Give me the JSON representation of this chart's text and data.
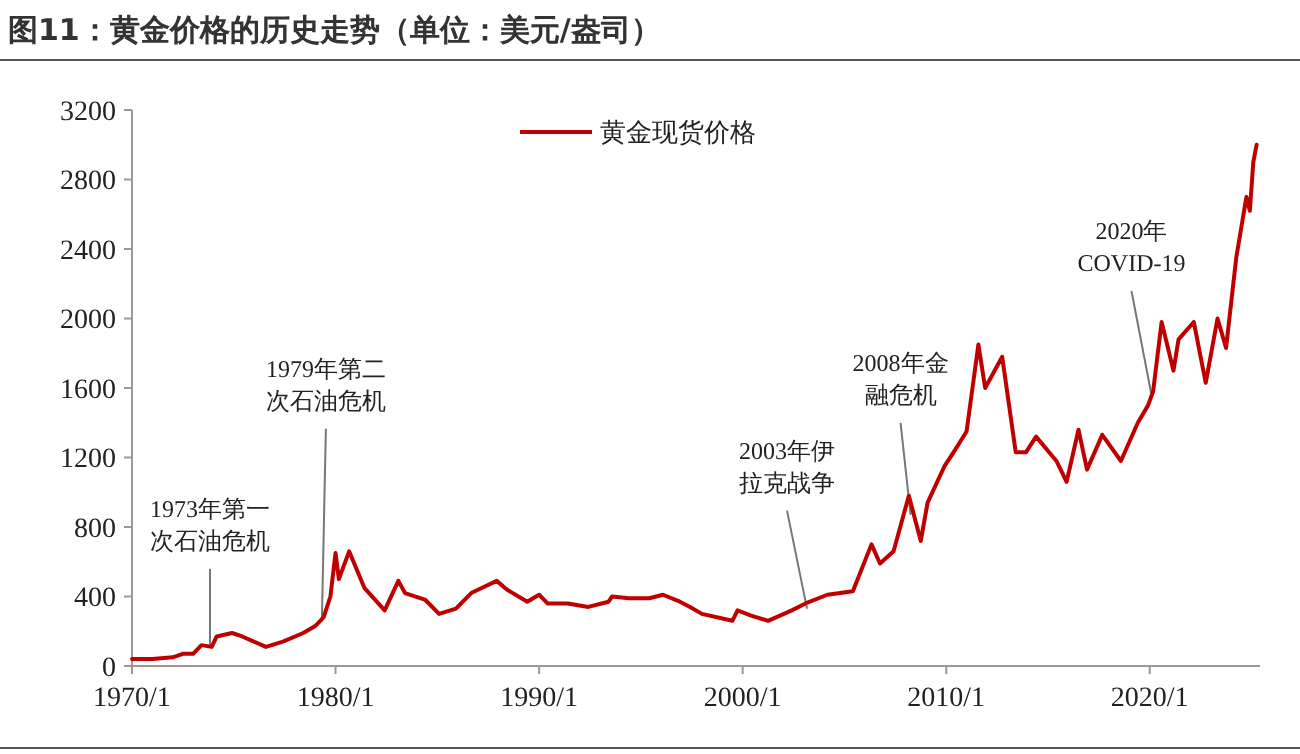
{
  "chart_data": {
    "type": "line",
    "title": "图11：黄金价格的历史走势（单位：美元/盎司）",
    "x": [
      "1970-01",
      "1971-01",
      "1972-01",
      "1972-07",
      "1973-01",
      "1973-06",
      "1973-12",
      "1974-03",
      "1974-12",
      "1975-06",
      "1976-08",
      "1977-06",
      "1978-06",
      "1979-01",
      "1979-06",
      "1979-10",
      "1980-01",
      "1980-03",
      "1980-09",
      "1981-06",
      "1982-06",
      "1983-02",
      "1983-06",
      "1984-06",
      "1985-02",
      "1985-12",
      "1986-09",
      "1987-12",
      "1988-06",
      "1989-06",
      "1990-01",
      "1990-06",
      "1991-06",
      "1992-06",
      "1993-06",
      "1993-08",
      "1994-06",
      "1995-06",
      "1996-02",
      "1996-12",
      "1997-06",
      "1998-01",
      "1999-07",
      "1999-10",
      "2000-06",
      "2001-04",
      "2002-06",
      "2003-02",
      "2004-03",
      "2005-06",
      "2006-05",
      "2006-10",
      "2007-06",
      "2008-03",
      "2008-10",
      "2009-02",
      "2009-12",
      "2010-06",
      "2011-01",
      "2011-08",
      "2011-12",
      "2012-10",
      "2013-06",
      "2013-12",
      "2014-06",
      "2015-06",
      "2015-12",
      "2016-07",
      "2016-12",
      "2017-09",
      "2018-08",
      "2019-06",
      "2019-12",
      "2020-03",
      "2020-08",
      "2021-03",
      "2021-06",
      "2022-03",
      "2022-10",
      "2023-05",
      "2023-10",
      "2024-04",
      "2024-10",
      "2024-12",
      "2025-02",
      "2025-04"
    ],
    "series": [
      {
        "name": "黄金现货价格",
        "color": "#c00000",
        "values": [
          40,
          40,
          50,
          70,
          70,
          120,
          110,
          170,
          190,
          170,
          110,
          140,
          190,
          230,
          280,
          400,
          650,
          500,
          660,
          450,
          320,
          490,
          420,
          380,
          300,
          330,
          420,
          490,
          440,
          370,
          410,
          360,
          360,
          340,
          370,
          400,
          390,
          390,
          410,
          370,
          340,
          300,
          260,
          320,
          290,
          260,
          320,
          360,
          410,
          430,
          700,
          590,
          660,
          980,
          720,
          940,
          1150,
          1240,
          1350,
          1850,
          1600,
          1780,
          1230,
          1230,
          1320,
          1180,
          1060,
          1360,
          1130,
          1330,
          1180,
          1400,
          1500,
          1580,
          1980,
          1700,
          1880,
          1980,
          1630,
          2000,
          1830,
          2350,
          2700,
          2620,
          2900,
          3000
        ]
      }
    ],
    "xlim": [
      "1970-01",
      "2025-06"
    ],
    "xticks": [
      {
        "value": "1970-01",
        "label": "1970/1"
      },
      {
        "value": "1980-01",
        "label": "1980/1"
      },
      {
        "value": "1990-01",
        "label": "1990/1"
      },
      {
        "value": "2000-01",
        "label": "2000/1"
      },
      {
        "value": "2010-01",
        "label": "2010/1"
      },
      {
        "value": "2020-01",
        "label": "2020/1"
      }
    ],
    "ylim": [
      0,
      3200
    ],
    "yticks": [
      0,
      400,
      800,
      1200,
      1600,
      2000,
      2400,
      2800,
      3200
    ],
    "annotations": [
      {
        "text": "1973年第一次石油危机",
        "x": "1973-11",
        "y": 110
      },
      {
        "text": "1979年第二次石油危机",
        "x": "1979-05",
        "y": 260
      },
      {
        "text": "2003年伊拉克战争",
        "x": "2003-03",
        "y": 330
      },
      {
        "text": "2008年金融危机",
        "x": "2008-04",
        "y": 870
      },
      {
        "text": "2020年\nCOVID-19",
        "x": "2020-02",
        "y": 1560
      }
    ],
    "legend": "top",
    "grid": false
  }
}
